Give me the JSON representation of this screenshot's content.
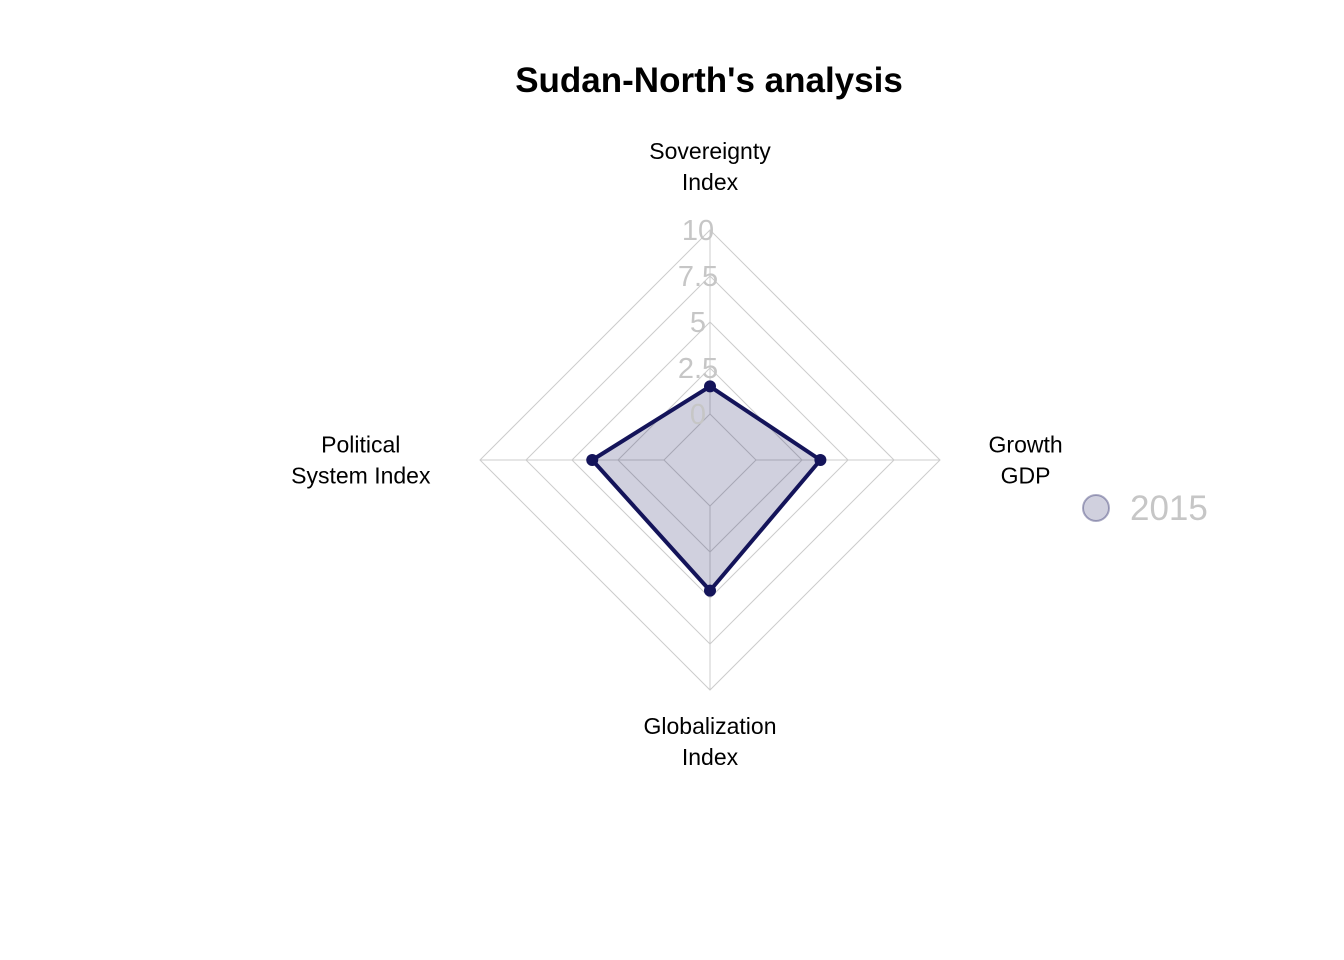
{
  "chart_data": {
    "type": "radar",
    "title": "Sudan-North's analysis",
    "axes": [
      {
        "label_lines": [
          "Sovereignty",
          "Index"
        ]
      },
      {
        "label_lines": [
          "Growth",
          "GDP"
        ]
      },
      {
        "label_lines": [
          "Globalization",
          "Index"
        ]
      },
      {
        "label_lines": [
          "Political",
          "System Index"
        ]
      }
    ],
    "rlim": [
      0,
      10
    ],
    "ticks": [
      "0",
      "2.5",
      "5",
      "7.5",
      "10"
    ],
    "tick_values": [
      0,
      2.5,
      5,
      7.5,
      10
    ],
    "series": [
      {
        "name": "2015",
        "values": [
          1.5,
          3.5,
          4.6,
          3.9
        ],
        "line_color": "#14145a",
        "fill_color": "#14145a",
        "fill_opacity": 0.2
      }
    ],
    "grid": true,
    "grid_color": "#cccccc",
    "legend": {
      "position": "right",
      "entries": [
        "2015"
      ]
    }
  }
}
